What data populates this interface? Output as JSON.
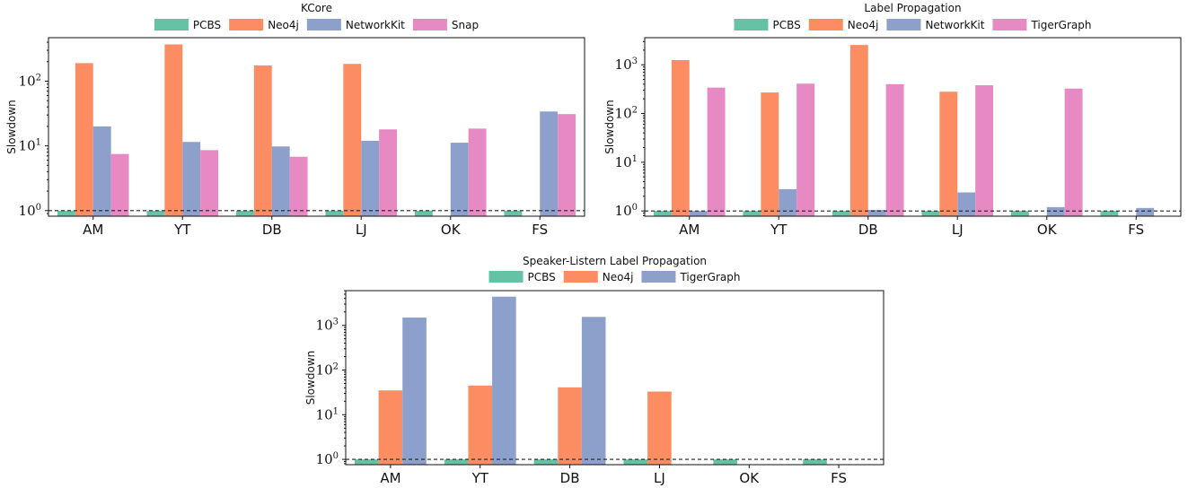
{
  "chart_data": [
    {
      "type": "bar",
      "title": "KCore",
      "ylabel": "Slowdown",
      "yscale": "log",
      "ylim": [
        0.82,
        470
      ],
      "yticks": [
        {
          "base": "10",
          "exp": "0"
        },
        {
          "base": "10",
          "exp": "1"
        },
        {
          "base": "10",
          "exp": "2"
        }
      ],
      "reference_line": 1,
      "legend_position": "top-center",
      "categories": [
        "AM",
        "YT",
        "DB",
        "LJ",
        "OK",
        "FS"
      ],
      "series": [
        {
          "name": "PCBS",
          "color": "#66c2a5",
          "values": [
            1,
            1,
            1,
            1,
            1,
            1
          ]
        },
        {
          "name": "Neo4j",
          "color": "#fc8d62",
          "values": [
            190,
            370,
            175,
            185,
            null,
            null
          ]
        },
        {
          "name": "NetworkKit",
          "color": "#8da0cb",
          "values": [
            20,
            11.5,
            9.8,
            12,
            11.2,
            34
          ]
        },
        {
          "name": "Snap",
          "color": "#e78ac3",
          "values": [
            7.5,
            8.6,
            6.8,
            18,
            18.5,
            31
          ]
        }
      ]
    },
    {
      "type": "bar",
      "title": "Label Propagation",
      "ylabel": "Slowdown",
      "yscale": "log",
      "ylim": [
        0.78,
        3600
      ],
      "yticks": [
        {
          "base": "10",
          "exp": "0"
        },
        {
          "base": "10",
          "exp": "1"
        },
        {
          "base": "10",
          "exp": "2"
        },
        {
          "base": "10",
          "exp": "3"
        }
      ],
      "reference_line": 1,
      "legend_position": "top-center",
      "categories": [
        "AM",
        "YT",
        "DB",
        "LJ",
        "OK",
        "FS"
      ],
      "series": [
        {
          "name": "PCBS",
          "color": "#66c2a5",
          "values": [
            1,
            1,
            1,
            1,
            1,
            1
          ]
        },
        {
          "name": "Neo4j",
          "color": "#fc8d62",
          "values": [
            1250,
            270,
            2550,
            280,
            null,
            null
          ]
        },
        {
          "name": "NetworkKit",
          "color": "#8da0cb",
          "values": [
            1,
            2.8,
            1.05,
            2.4,
            1.2,
            1.15
          ]
        },
        {
          "name": "TigerGraph",
          "color": "#e78ac3",
          "values": [
            340,
            410,
            400,
            380,
            325,
            null
          ]
        }
      ]
    },
    {
      "type": "bar",
      "title": "Speaker-Listern Label Propagation",
      "ylabel": "Slowdown",
      "yscale": "log",
      "ylim": [
        0.76,
        6000
      ],
      "yticks": [
        {
          "base": "10",
          "exp": "0"
        },
        {
          "base": "10",
          "exp": "1"
        },
        {
          "base": "10",
          "exp": "2"
        },
        {
          "base": "10",
          "exp": "3"
        }
      ],
      "reference_line": 1,
      "legend_position": "top-center",
      "categories": [
        "AM",
        "YT",
        "DB",
        "LJ",
        "OK",
        "FS"
      ],
      "series": [
        {
          "name": "PCBS",
          "color": "#66c2a5",
          "values": [
            1,
            1,
            1,
            1,
            1,
            1
          ]
        },
        {
          "name": "Neo4j",
          "color": "#fc8d62",
          "values": [
            35,
            45,
            41,
            33,
            null,
            null
          ]
        },
        {
          "name": "TigerGraph",
          "color": "#8da0cb",
          "values": [
            1500,
            4400,
            1550,
            null,
            null,
            null
          ]
        }
      ]
    }
  ]
}
